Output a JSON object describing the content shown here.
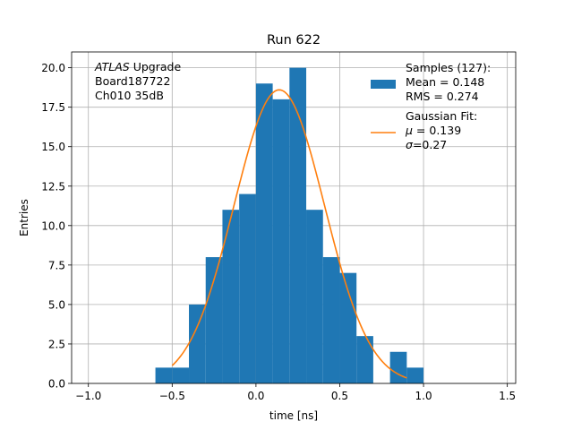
{
  "chart_data": {
    "type": "bar",
    "title": "Run 622",
    "xlabel": "time [ns]",
    "ylabel": "Entries",
    "xlim": [
      -1.1,
      1.55
    ],
    "ylim": [
      0,
      21
    ],
    "grid": true,
    "legend_position": "top-right",
    "xticks": [
      -1.0,
      -0.5,
      0.0,
      0.5,
      1.0,
      1.5
    ],
    "xtick_labels": [
      "−1.0",
      "−0.5",
      "0.0",
      "0.5",
      "1.0",
      "1.5"
    ],
    "yticks": [
      0,
      2.5,
      5,
      7.5,
      10,
      12.5,
      15,
      17.5,
      20
    ],
    "ytick_labels": [
      "0.0",
      "2.5",
      "5.0",
      "7.5",
      "10.0",
      "12.5",
      "15.0",
      "17.5",
      "20.0"
    ],
    "histogram": {
      "bin_edges": [
        -0.6,
        -0.5,
        -0.4,
        -0.3,
        -0.2,
        -0.1,
        0.0,
        0.1,
        0.2,
        0.3,
        0.4,
        0.5,
        0.6,
        0.7,
        0.8,
        0.9,
        1.0
      ],
      "counts": [
        1,
        1,
        5,
        8,
        11,
        12,
        19,
        18,
        20,
        11,
        8,
        7,
        3,
        0,
        2,
        1
      ],
      "color": "#1f77b4"
    },
    "fit": {
      "mu": 0.139,
      "sigma": 0.27,
      "amplitude": 18.6,
      "x_range": [
        -0.5,
        0.9
      ],
      "color": "#ff7f0e"
    },
    "annotation_lines": [
      {
        "italic": "ATLAS",
        "rest": " Upgrade"
      },
      {
        "italic": "",
        "rest": " Board187722"
      },
      {
        "italic": "",
        "rest": " Ch010 35dB"
      }
    ],
    "legend": {
      "hist_lines": [
        "Samples (127):",
        " Mean = 0.148",
        " RMS = 0.274"
      ],
      "fit_lines": [
        {
          "sym": "",
          "rest": "Gaussian Fit:"
        },
        {
          "sym": "μ",
          "rest": " = 0.139"
        },
        {
          "sym": "σ",
          "rest": "=0.27"
        }
      ]
    }
  }
}
